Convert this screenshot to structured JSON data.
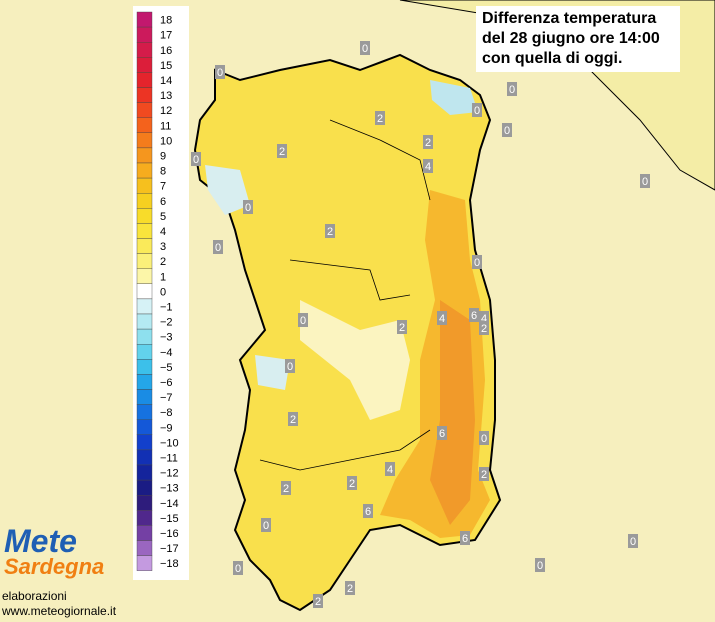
{
  "title": [
    "Differenza temperatura",
    "del 28 giugno ore 14:00",
    "con quella di oggi."
  ],
  "logo": [
    "Mete",
    "Sardegna"
  ],
  "credits": [
    "elaborazioni",
    "www.meteogiornale.it"
  ],
  "legend": [
    {
      "label": "18",
      "color": "#c2186e"
    },
    {
      "label": "17",
      "color": "#cc1a5c"
    },
    {
      "label": "16",
      "color": "#d41c4a"
    },
    {
      "label": "15",
      "color": "#dc1e3a"
    },
    {
      "label": "14",
      "color": "#e4242c"
    },
    {
      "label": "13",
      "color": "#ec3424"
    },
    {
      "label": "12",
      "color": "#f04a20"
    },
    {
      "label": "11",
      "color": "#f4621c"
    },
    {
      "label": "10",
      "color": "#f47c1c"
    },
    {
      "label": "9",
      "color": "#f5961e"
    },
    {
      "label": "8",
      "color": "#f6ac1e"
    },
    {
      "label": "7",
      "color": "#f6c01e"
    },
    {
      "label": "6",
      "color": "#f6d020"
    },
    {
      "label": "5",
      "color": "#f8dc2a"
    },
    {
      "label": "4",
      "color": "#f9e43c"
    },
    {
      "label": "3",
      "color": "#faea5a"
    },
    {
      "label": "2",
      "color": "#fbf07a"
    },
    {
      "label": "1",
      "color": "#fcf6a8"
    },
    {
      "label": "0",
      "color": "#ffffff"
    },
    {
      "label": "−1",
      "color": "#d6f2f6"
    },
    {
      "label": "−2",
      "color": "#b4eaf2"
    },
    {
      "label": "−3",
      "color": "#8ee0ee"
    },
    {
      "label": "−4",
      "color": "#62d2ec"
    },
    {
      "label": "−5",
      "color": "#3cc0ea"
    },
    {
      "label": "−6",
      "color": "#24a6e8"
    },
    {
      "label": "−7",
      "color": "#1a8ce4"
    },
    {
      "label": "−8",
      "color": "#1672e0"
    },
    {
      "label": "−9",
      "color": "#1458d8"
    },
    {
      "label": "−10",
      "color": "#1240cc"
    },
    {
      "label": "−11",
      "color": "#1230b4"
    },
    {
      "label": "−12",
      "color": "#14249c"
    },
    {
      "label": "−13",
      "color": "#1a1c84"
    },
    {
      "label": "−14",
      "color": "#2e1c7c"
    },
    {
      "label": "−15",
      "color": "#50288c"
    },
    {
      "label": "−16",
      "color": "#7440a4"
    },
    {
      "label": "−17",
      "color": "#9a66c0"
    },
    {
      "label": "−18",
      "color": "#c49ae0"
    }
  ],
  "contour_labels": [
    "0",
    "0",
    "0",
    "0",
    "2",
    "0",
    "2",
    "2",
    "0",
    "4",
    "0",
    "0",
    "2",
    "0",
    "0",
    "0",
    "4",
    "6",
    "4",
    "2",
    "2",
    "0",
    "2",
    "6",
    "0",
    "4",
    "2",
    "2",
    "2",
    "6",
    "6",
    "0",
    "0",
    "0",
    "0",
    "2",
    "2"
  ]
}
